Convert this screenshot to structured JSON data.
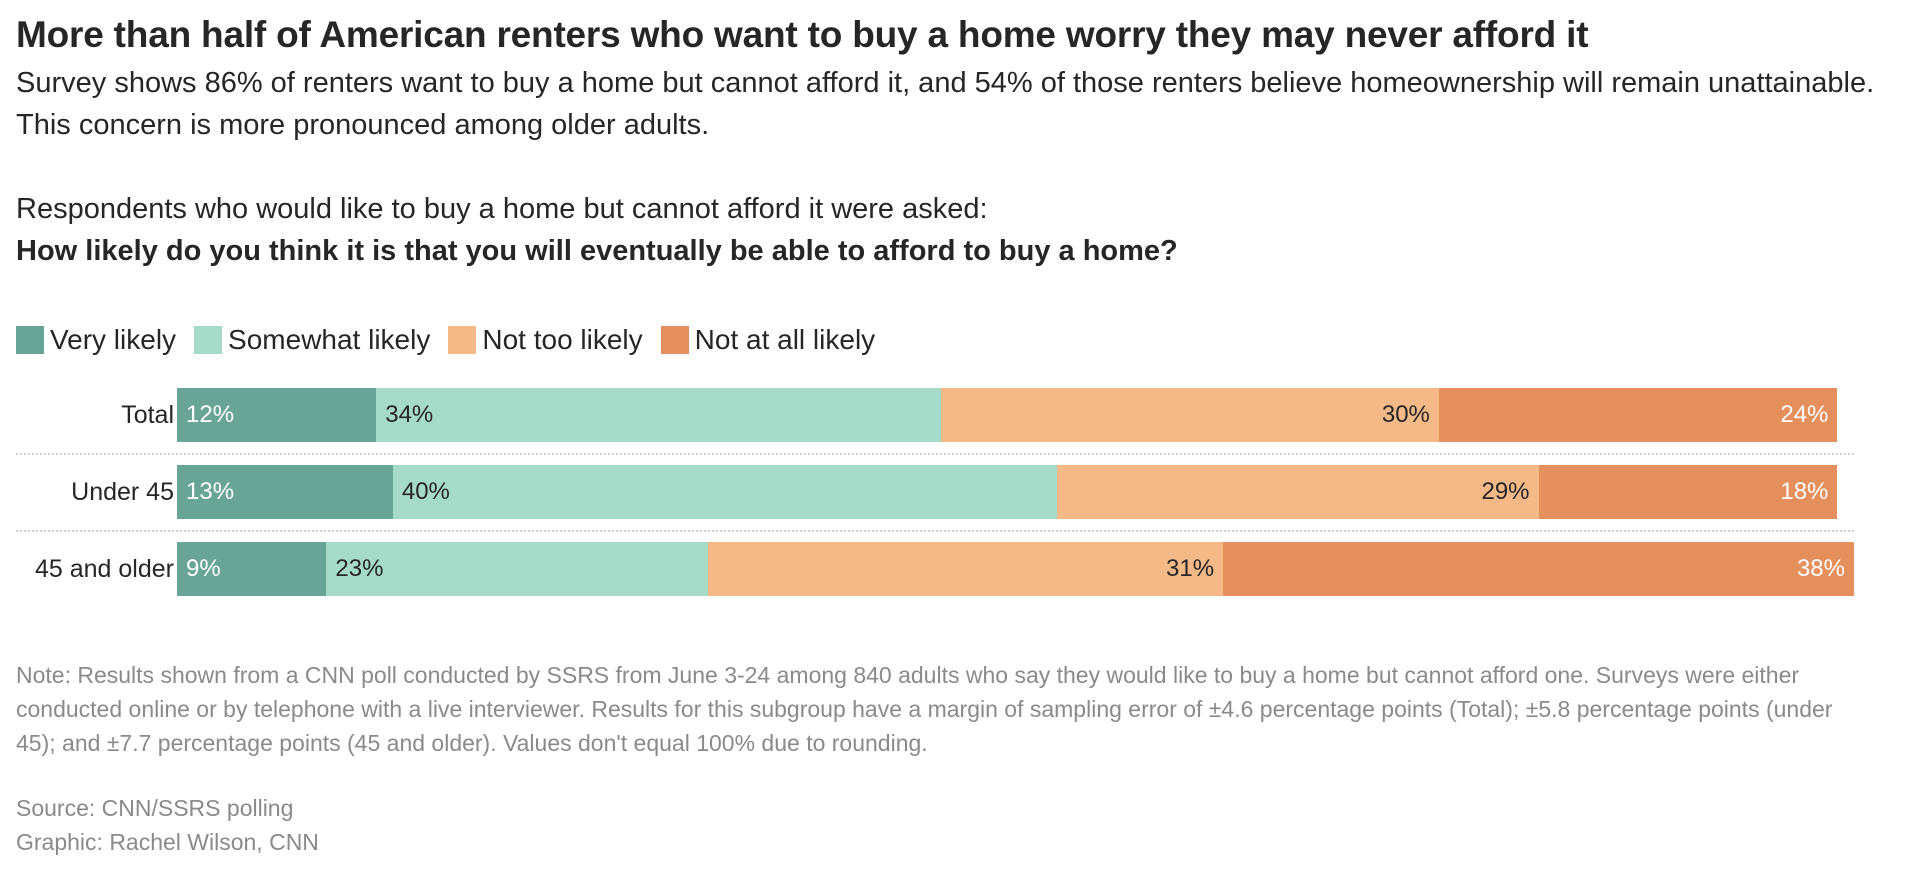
{
  "header": {
    "title": "More than half of American renters who want to buy a home worry they may never afford it",
    "subtitle": "Survey shows 86% of renters want to buy a home but cannot afford it, and 54% of those renters believe homeownership will remain unattainable. This concern is more pronounced among older adults.",
    "question_intro": "Respondents who would like to buy a home but cannot afford it were asked:",
    "question": "How likely do you think it is that you will eventually be able to afford to buy a home?"
  },
  "legend": [
    {
      "label": "Very likely",
      "color": "#69a596"
    },
    {
      "label": "Somewhat likely",
      "color": "#a6dac9"
    },
    {
      "label": "Not too likely",
      "color": "#f5b987"
    },
    {
      "label": "Not at all likely",
      "color": "#e48f5c"
    }
  ],
  "chart_data": {
    "type": "bar",
    "orientation": "horizontal",
    "stacked": true,
    "categories": [
      "Total",
      "Under 45",
      "45 and older"
    ],
    "series": [
      {
        "name": "Very likely",
        "values": [
          12,
          13,
          9
        ],
        "color": "#69a596",
        "label_color": "#ffffff"
      },
      {
        "name": "Somewhat likely",
        "values": [
          34,
          40,
          23
        ],
        "color": "#a6dac9",
        "label_color": "#262626"
      },
      {
        "name": "Not too likely",
        "values": [
          30,
          29,
          31
        ],
        "color": "#f5b987",
        "label_color": "#262626"
      },
      {
        "name": "Not at all likely",
        "values": [
          24,
          18,
          38
        ],
        "color": "#e48f5c",
        "label_color": "#ffffff"
      }
    ],
    "value_suffix": "%",
    "xlim": [
      0,
      101
    ],
    "legend_position": "top-left"
  },
  "footer": {
    "note": "Note: Results shown from a CNN poll conducted by SSRS from June 3-24 among 840 adults who say they would like to buy a home but cannot afford one. Surveys were either conducted online or by telephone with a live interviewer. Results for this subgroup have a margin of sampling error of ±4.6 percentage points (Total); ±5.8 percentage points (under 45); and ±7.7 percentage points (45 and older). Values don't equal 100% due to rounding.",
    "source": "Source: CNN/SSRS polling",
    "credit": "Graphic: Rachel Wilson, CNN"
  }
}
